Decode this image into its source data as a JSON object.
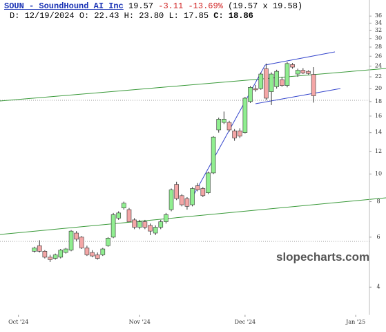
{
  "chart_data": {
    "type": "candlestick",
    "title": "SOUN - SoundHound AI Inc",
    "quote": {
      "last": "19.57",
      "change": "-3.11",
      "change_pct": "-13.69%",
      "bid_ask": "(19.57 x 19.58)"
    },
    "ohlc_labels": {
      "date": "D: 12/19/2024",
      "open": "O: 22.43",
      "high": "H: 23.80",
      "low": "L: 17.85",
      "close": "C: 18.86"
    },
    "watermark": "slopecharts.com",
    "categories": [
      null,
      null,
      null,
      null,
      null,
      null,
      null,
      null,
      null,
      null,
      null,
      null,
      null,
      null,
      null,
      null,
      null,
      null,
      null,
      null,
      null,
      null,
      null,
      null,
      null,
      null,
      null,
      null,
      null,
      null,
      null,
      null,
      null,
      null,
      null,
      null,
      null,
      null,
      null,
      null,
      null,
      null,
      null,
      null,
      null,
      null,
      null,
      null,
      null,
      null,
      null,
      null,
      null,
      null,
      null,
      null,
      null
    ],
    "open": [
      null,
      null,
      null,
      5.35,
      5.6,
      5.35,
      5.1,
      5.05,
      5.1,
      5.3,
      5.4,
      6.2,
      6.0,
      5.5,
      5.3,
      5.2,
      5.2,
      5.6,
      6.0,
      7.0,
      7.6,
      7.5,
      6.9,
      6.5,
      6.8,
      6.6,
      6.2,
      6.5,
      6.8,
      7.5,
      9.2,
      8.4,
      8.2,
      7.8,
      9.1,
      8.9,
      8.6,
      10.1,
      14.3,
      15.2,
      15.2,
      14.2,
      14.2,
      14.0,
      18.0,
      20.0,
      20.0,
      23.5,
      19.5,
      20.3,
      21.5,
      20.5,
      24.3,
      22.5,
      23.2,
      23.0,
      22.43
    ],
    "high": [
      null,
      null,
      null,
      5.55,
      5.85,
      5.4,
      5.2,
      5.25,
      5.45,
      5.5,
      6.35,
      6.3,
      6.05,
      5.6,
      5.4,
      5.3,
      5.5,
      6.0,
      7.3,
      7.4,
      8.0,
      7.6,
      7.0,
      6.9,
      6.9,
      6.7,
      6.6,
      6.9,
      7.3,
      8.9,
      9.4,
      8.5,
      8.3,
      9.0,
      9.3,
      9.0,
      10.2,
      13.6,
      15.8,
      16.6,
      15.4,
      14.4,
      14.5,
      18.7,
      20.4,
      20.6,
      22.8,
      24.5,
      22.8,
      23.3,
      22.0,
      24.8,
      24.6,
      23.5,
      23.6,
      23.2,
      23.8
    ],
    "low": [
      null,
      null,
      null,
      5.3,
      5.3,
      5.05,
      4.9,
      5.0,
      5.05,
      5.25,
      5.35,
      5.8,
      5.45,
      5.15,
      5.1,
      5.0,
      5.15,
      5.55,
      5.95,
      6.9,
      7.5,
      6.8,
      6.4,
      6.4,
      6.4,
      6.1,
      6.1,
      6.4,
      6.7,
      7.4,
      8.1,
      7.7,
      7.5,
      7.7,
      8.7,
      8.3,
      8.5,
      10.0,
      14.0,
      15.0,
      14.1,
      13.1,
      13.4,
      13.9,
      17.8,
      19.5,
      19.8,
      18.2,
      17.5,
      20.0,
      20.3,
      20.2,
      23.5,
      22.0,
      22.5,
      22.4,
      17.85
    ],
    "close": [
      null,
      null,
      null,
      5.5,
      5.35,
      5.1,
      5.0,
      5.2,
      5.4,
      5.45,
      6.3,
      5.9,
      5.5,
      5.2,
      5.15,
      5.05,
      5.45,
      5.95,
      7.2,
      7.3,
      7.9,
      6.8,
      6.5,
      6.8,
      6.5,
      6.3,
      6.5,
      6.8,
      7.2,
      8.8,
      8.2,
      7.8,
      7.7,
      8.9,
      8.8,
      8.4,
      10.1,
      13.5,
      15.6,
      15.6,
      14.3,
      13.4,
      13.6,
      18.5,
      20.2,
      19.8,
      22.5,
      18.5,
      22.5,
      23.0,
      20.5,
      24.5,
      23.8,
      23.2,
      22.7,
      22.6,
      18.86
    ],
    "up_color": "#90ee90",
    "down_color": "#f4a6a6",
    "log_scale": true,
    "xlim": [
      -3.5,
      66.6
    ],
    "xticks": [
      {
        "value": 0,
        "label": "Oct '24"
      },
      {
        "value": 23,
        "label": "Nov '24"
      },
      {
        "value": 43,
        "label": "Dec '24"
      },
      {
        "value": 64,
        "label": "Jan '25"
      }
    ],
    "ylim": [
      3.2,
      41
    ],
    "yticks": [
      4,
      6,
      8,
      10,
      12,
      14,
      16,
      18,
      20,
      22,
      24,
      26,
      28,
      30,
      32,
      34,
      36
    ]
  }
}
